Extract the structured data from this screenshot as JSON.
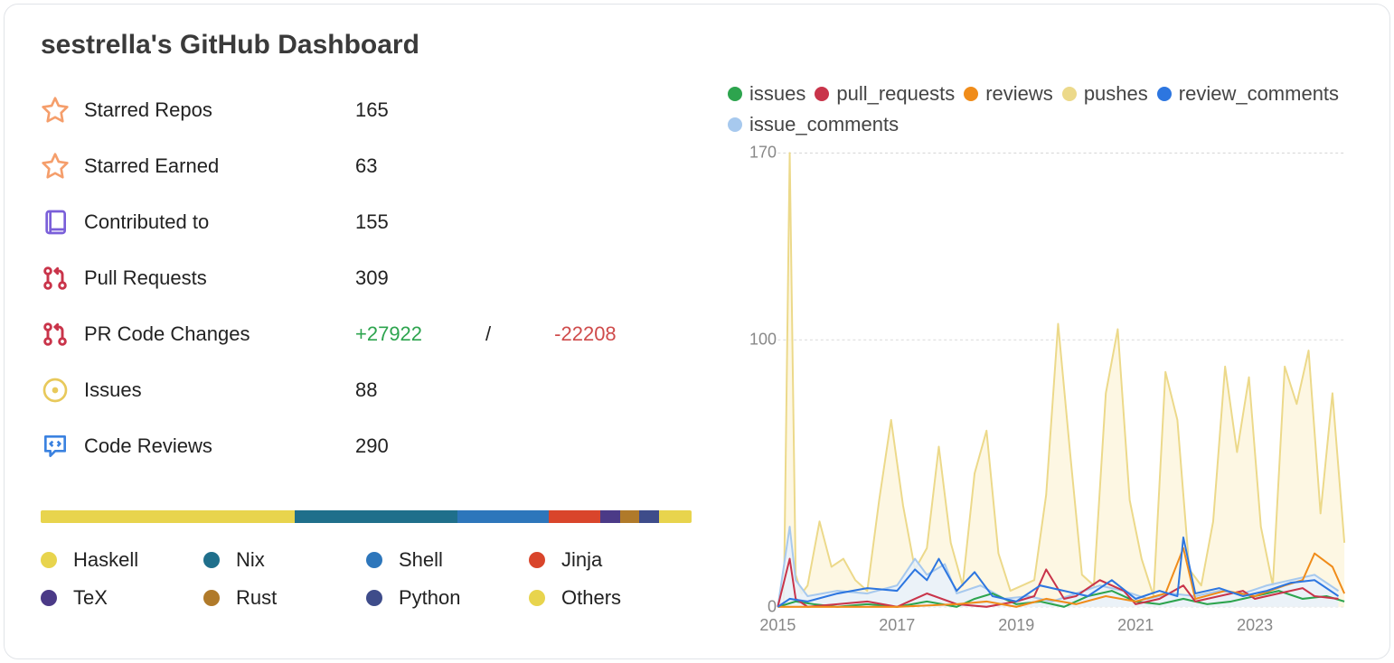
{
  "title": "sestrella's GitHub Dashboard",
  "stats": {
    "starred_repos": {
      "icon": "star",
      "label": "Starred Repos",
      "value": "165"
    },
    "starred_earned": {
      "icon": "star",
      "label": "Starred Earned",
      "value": "63"
    },
    "contributed_to": {
      "icon": "repo",
      "label": "Contributed to",
      "value": "155"
    },
    "pull_requests": {
      "icon": "pr",
      "label": "Pull Requests",
      "value": "309"
    },
    "pr_code_changes": {
      "icon": "pr",
      "label": "PR Code Changes",
      "added": "+27922",
      "removed": "-22208"
    },
    "issues": {
      "icon": "issue",
      "label": "Issues",
      "value": "88"
    },
    "code_reviews": {
      "icon": "review",
      "label": "Code Reviews",
      "value": "290"
    }
  },
  "icon_colors": {
    "star": "#f59e6b",
    "repo": "#7a5fd9",
    "pr": "#c9344a",
    "issue": "#e8c95b",
    "review": "#3b82e0"
  },
  "languages": {
    "bar": [
      {
        "name": "Haskell",
        "color": "#e8d44d",
        "pct": 39
      },
      {
        "name": "Nix",
        "color": "#1f6f8b",
        "pct": 25
      },
      {
        "name": "Shell",
        "color": "#2d76bb",
        "pct": 14
      },
      {
        "name": "Jinja",
        "color": "#d9452b",
        "pct": 8
      },
      {
        "name": "TeX",
        "color": "#4b3a87",
        "pct": 3
      },
      {
        "name": "Rust",
        "color": "#b07a2a",
        "pct": 3
      },
      {
        "name": "Python",
        "color": "#3e4c8a",
        "pct": 3
      },
      {
        "name": "Others",
        "color": "#e8d44d",
        "pct": 5
      }
    ],
    "legend": [
      {
        "name": "Haskell",
        "color": "#e8d44d"
      },
      {
        "name": "Nix",
        "color": "#1f6f8b"
      },
      {
        "name": "Shell",
        "color": "#2d76bb"
      },
      {
        "name": "Jinja",
        "color": "#d9452b"
      },
      {
        "name": "TeX",
        "color": "#4b3a87"
      },
      {
        "name": "Rust",
        "color": "#b07a2a"
      },
      {
        "name": "Python",
        "color": "#3e4c8a"
      },
      {
        "name": "Others",
        "color": "#e8d44d"
      }
    ]
  },
  "chart": {
    "type": "line-area",
    "ylim": [
      0,
      170
    ],
    "yticks": [
      0,
      100,
      170
    ],
    "xlim": [
      2015,
      2024.5
    ],
    "xticks": [
      2015,
      2017,
      2019,
      2021,
      2023
    ],
    "grid_color": "#d9d9d9",
    "background_color": "#ffffff",
    "legend": [
      {
        "key": "issues",
        "label": "issues",
        "color": "#2da44e"
      },
      {
        "key": "pull_requests",
        "label": "pull_requests",
        "color": "#c9344a"
      },
      {
        "key": "reviews",
        "label": "reviews",
        "color": "#f08c1a"
      },
      {
        "key": "pushes",
        "label": "pushes",
        "color": "#ecd98a"
      },
      {
        "key": "review_comments",
        "label": "review_comments",
        "color": "#2d76e0"
      },
      {
        "key": "issue_comments",
        "label": "issue_comments",
        "color": "#a7c9ee"
      }
    ],
    "series": {
      "pushes": {
        "color": "#ecd98a",
        "fill": "#fdf6de",
        "xs": [
          2015.0,
          2015.1,
          2015.2,
          2015.3,
          2015.4,
          2015.5,
          2015.7,
          2015.9,
          2016.1,
          2016.3,
          2016.5,
          2016.7,
          2016.9,
          2017.1,
          2017.3,
          2017.5,
          2017.7,
          2017.9,
          2018.1,
          2018.3,
          2018.5,
          2018.7,
          2018.9,
          2019.1,
          2019.3,
          2019.5,
          2019.7,
          2019.9,
          2020.1,
          2020.3,
          2020.5,
          2020.7,
          2020.9,
          2021.1,
          2021.3,
          2021.5,
          2021.7,
          2021.9,
          2022.1,
          2022.3,
          2022.5,
          2022.7,
          2022.9,
          2023.1,
          2023.3,
          2023.5,
          2023.7,
          2023.9,
          2024.1,
          2024.3,
          2024.5
        ],
        "ys": [
          2,
          0,
          170,
          12,
          5,
          8,
          32,
          15,
          18,
          10,
          6,
          40,
          70,
          38,
          14,
          22,
          60,
          24,
          8,
          50,
          66,
          20,
          6,
          8,
          10,
          42,
          106,
          58,
          12,
          8,
          80,
          104,
          40,
          18,
          4,
          88,
          70,
          14,
          8,
          32,
          90,
          58,
          86,
          30,
          8,
          90,
          76,
          96,
          35,
          80,
          24
        ]
      },
      "issues": {
        "color": "#2da44e",
        "xs": [
          2015.0,
          2015.3,
          2015.6,
          2016.0,
          2016.5,
          2017.0,
          2017.5,
          2018.0,
          2018.3,
          2018.6,
          2019.0,
          2019.4,
          2019.8,
          2020.2,
          2020.6,
          2021.0,
          2021.4,
          2021.8,
          2022.2,
          2022.6,
          2023.0,
          2023.4,
          2023.8,
          2024.2,
          2024.5
        ],
        "ys": [
          0,
          2,
          1,
          0,
          1,
          0,
          2,
          0,
          3,
          5,
          1,
          2,
          0,
          4,
          6,
          2,
          1,
          3,
          1,
          2,
          4,
          6,
          3,
          4,
          2
        ]
      },
      "pull_requests": {
        "color": "#c9344a",
        "xs": [
          2015.0,
          2015.2,
          2015.3,
          2015.5,
          2016.0,
          2016.5,
          2017.0,
          2017.5,
          2018.0,
          2018.5,
          2019.0,
          2019.3,
          2019.5,
          2019.8,
          2020.0,
          2020.4,
          2020.8,
          2021.0,
          2021.4,
          2021.8,
          2022.0,
          2022.4,
          2022.8,
          2023.0,
          2023.4,
          2023.8,
          2024.0,
          2024.4
        ],
        "ys": [
          0,
          18,
          3,
          0,
          1,
          2,
          0,
          5,
          1,
          0,
          2,
          4,
          14,
          3,
          4,
          10,
          6,
          1,
          3,
          8,
          2,
          4,
          6,
          3,
          5,
          7,
          4,
          3
        ]
      },
      "reviews": {
        "color": "#f08c1a",
        "xs": [
          2015.0,
          2016.0,
          2017.0,
          2018.0,
          2018.5,
          2019.0,
          2019.5,
          2020.0,
          2020.5,
          2021.0,
          2021.5,
          2021.8,
          2022.0,
          2022.5,
          2023.0,
          2023.5,
          2023.8,
          2024.0,
          2024.3,
          2024.5
        ],
        "ys": [
          0,
          0,
          0,
          1,
          2,
          0,
          3,
          1,
          4,
          2,
          5,
          22,
          3,
          6,
          4,
          8,
          10,
          20,
          15,
          5
        ]
      },
      "review_comments": {
        "color": "#2d76e0",
        "xs": [
          2015.0,
          2015.2,
          2015.5,
          2016.0,
          2016.5,
          2017.0,
          2017.3,
          2017.5,
          2017.7,
          2018.0,
          2018.3,
          2018.6,
          2019.0,
          2019.4,
          2019.8,
          2020.2,
          2020.6,
          2021.0,
          2021.4,
          2021.7,
          2021.8,
          2022.0,
          2022.4,
          2022.8,
          2023.2,
          2023.6,
          2024.0,
          2024.4
        ],
        "ys": [
          0,
          3,
          2,
          5,
          7,
          6,
          14,
          10,
          18,
          6,
          13,
          4,
          2,
          8,
          6,
          4,
          10,
          3,
          6,
          4,
          26,
          5,
          7,
          4,
          6,
          9,
          10,
          4
        ]
      },
      "issue_comments": {
        "color": "#a7c9ee",
        "fill": "#e8f1fb",
        "xs": [
          2015.0,
          2015.2,
          2015.3,
          2015.5,
          2016.0,
          2016.5,
          2017.0,
          2017.3,
          2017.5,
          2017.8,
          2018.0,
          2018.4,
          2018.8,
          2019.2,
          2019.6,
          2020.0,
          2020.4,
          2020.8,
          2021.2,
          2021.6,
          2022.0,
          2022.4,
          2022.8,
          2023.2,
          2023.6,
          2024.0,
          2024.4
        ],
        "ys": [
          0,
          30,
          10,
          4,
          6,
          5,
          8,
          18,
          12,
          16,
          5,
          8,
          3,
          4,
          2,
          5,
          8,
          6,
          3,
          5,
          4,
          6,
          5,
          8,
          10,
          12,
          6
        ]
      }
    }
  }
}
